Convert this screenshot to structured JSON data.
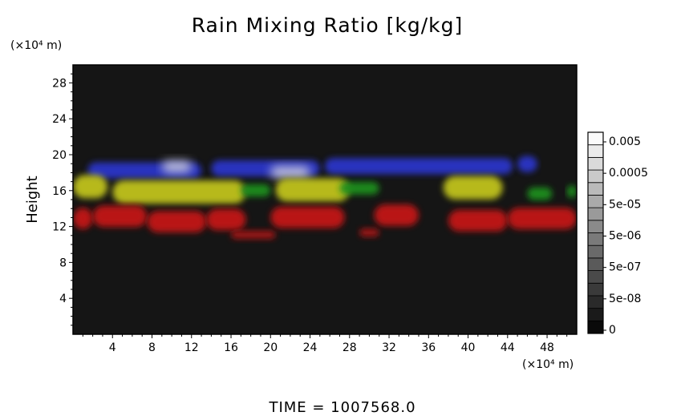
{
  "chart_data": {
    "type": "heatmap",
    "title": "Rain Mixing Ratio [kg/kg]",
    "ylabel": "Height",
    "y_unit": "(×10⁴ m)",
    "x_unit": "(×10⁴ m)",
    "xlim": [
      0,
      51
    ],
    "ylim": [
      0,
      30
    ],
    "xticks": [
      4,
      8,
      12,
      16,
      20,
      24,
      28,
      32,
      36,
      40,
      44,
      48
    ],
    "yticks": [
      4,
      8,
      12,
      16,
      20,
      24,
      28
    ],
    "colorbar": {
      "labels": [
        "0.005",
        "0.0005",
        "5e-05",
        "5e-06",
        "5e-07",
        "5e-08",
        "0"
      ],
      "levels": 16
    },
    "background_color": "#151515",
    "bands": [
      {
        "name": "upper band",
        "color": "#2c35c8",
        "y_center": 18.6,
        "thickness": 1.8,
        "segments": [
          [
            1.5,
            13
          ],
          [
            14,
            25
          ],
          [
            25.5,
            44.5
          ],
          [
            45,
            47
          ]
        ]
      },
      {
        "name": "bright core",
        "color": "#c8c8dc",
        "y_center": 18.3,
        "thickness": 1.3,
        "segments": [
          [
            9,
            12
          ],
          [
            20,
            24
          ]
        ]
      },
      {
        "name": "yellow band",
        "color": "#c0c21a",
        "y_center": 16.2,
        "thickness": 2.6,
        "segments": [
          [
            0,
            3.5
          ],
          [
            4,
            17.5
          ],
          [
            20.5,
            28
          ],
          [
            37.5,
            43.5
          ]
        ]
      },
      {
        "name": "green band",
        "color": "#1f8f1f",
        "y_center": 15.9,
        "thickness": 1.4,
        "segments": [
          [
            17,
            20
          ],
          [
            27,
            31
          ],
          [
            46,
            48.5
          ],
          [
            50,
            51
          ]
        ]
      },
      {
        "name": "lower band",
        "color": "#c21212",
        "y_center": 12.9,
        "thickness": 2.4,
        "segments": [
          [
            0,
            2
          ],
          [
            2,
            7.5
          ],
          [
            7.5,
            13.5
          ],
          [
            13.5,
            17.5
          ],
          [
            20,
            27.5
          ],
          [
            30.5,
            35
          ],
          [
            38,
            44
          ],
          [
            44,
            51
          ]
        ]
      },
      {
        "name": "low patches",
        "color": "#a81414",
        "y_center": 11.2,
        "thickness": 0.9,
        "segments": [
          [
            16,
            20.5
          ],
          [
            29,
            31
          ]
        ]
      }
    ]
  },
  "footer": {
    "time_text": "TIME  =  1007568.0"
  }
}
